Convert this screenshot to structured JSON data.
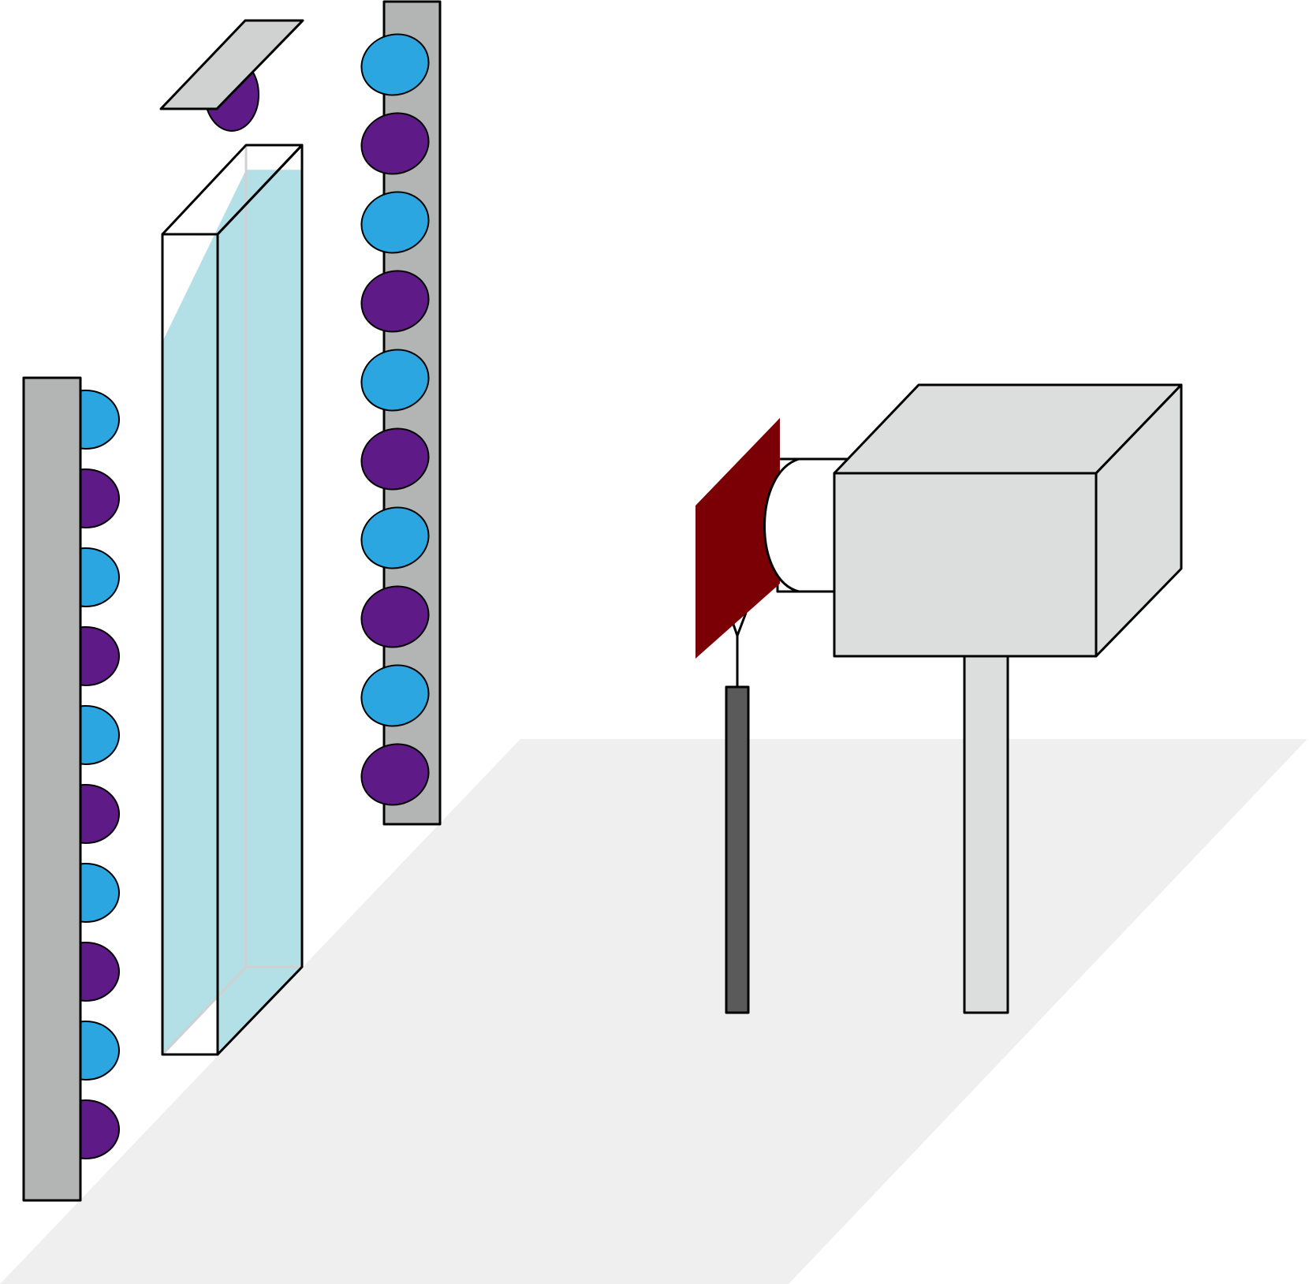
{
  "colors": {
    "background": "#ffffff",
    "floor": "#efefef",
    "led_panel": "#b3b4b4",
    "led_blue": "#2ba6e0",
    "led_purple": "#5e1a86",
    "tank_water": "#b3dfe7",
    "tank_glass_edge": "#d0d0d0",
    "lid": "#d0d2d2",
    "camera_body": "#dcdedd",
    "camera_stand": "#dcdedd",
    "filter": "#7a0006",
    "sensor_rod": "#5a5a5a",
    "outline": "#000000"
  },
  "components": {
    "left_led_panel": {
      "led_count": 10,
      "led_pattern": [
        "blue",
        "purple"
      ]
    },
    "right_led_panel": {
      "led_count": 10,
      "led_pattern": [
        "blue",
        "purple"
      ]
    },
    "lid_led": {
      "color": "purple"
    },
    "water_tank": {
      "fill_fraction": 0.97
    }
  }
}
